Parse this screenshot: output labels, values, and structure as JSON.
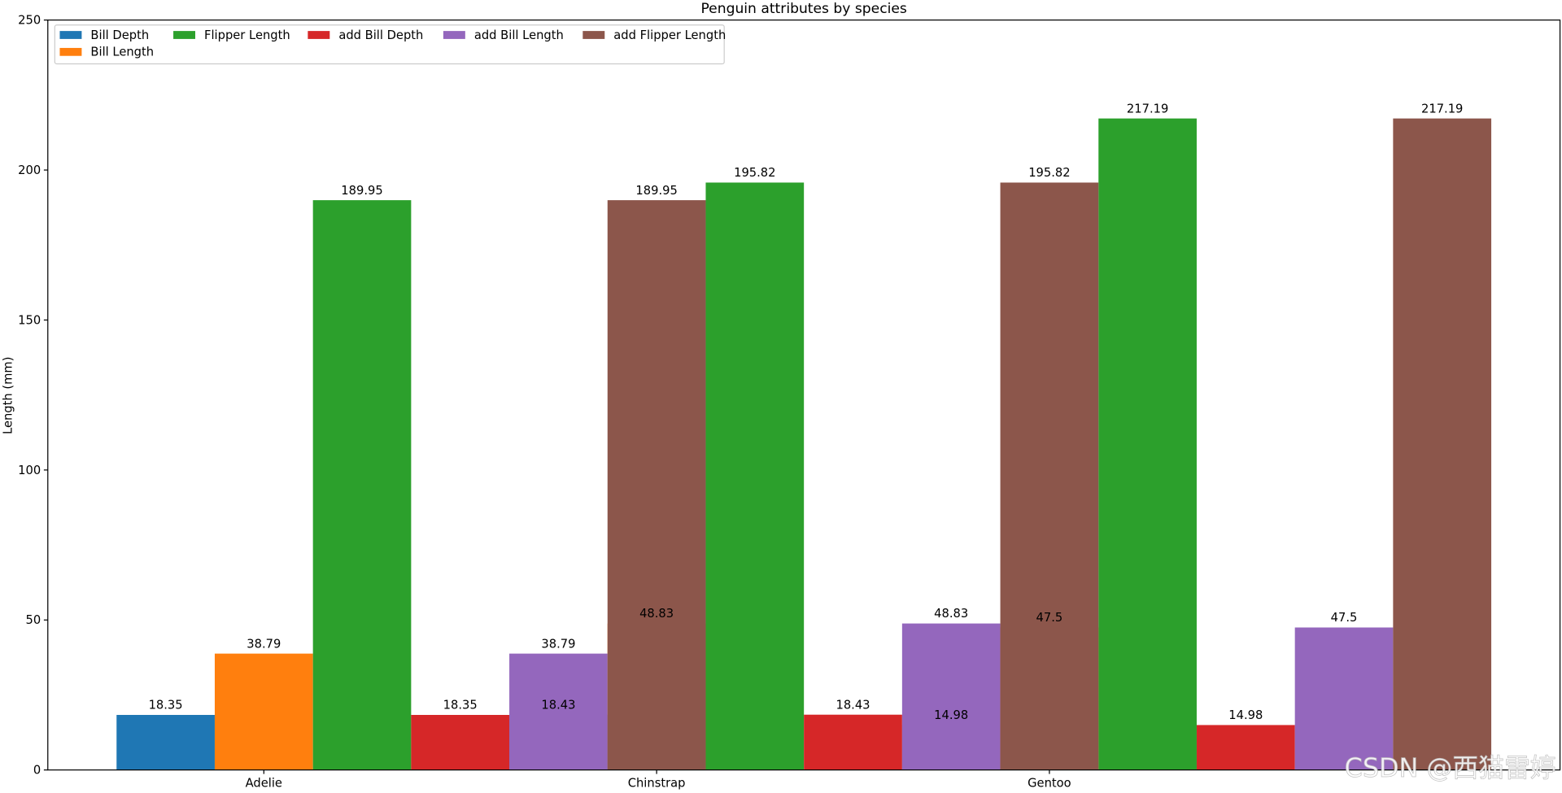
{
  "chart_data": {
    "type": "bar",
    "title": "Penguin attributes by species",
    "ylabel": "Length (mm)",
    "categories": [
      "Adelie",
      "Chinstrap",
      "Gentoo"
    ],
    "series": [
      {
        "name": "Bill Depth",
        "color": "#1f77b4",
        "values": [
          18.35,
          18.43,
          14.98
        ]
      },
      {
        "name": "Bill Length",
        "color": "#ff7f0e",
        "values": [
          38.79,
          48.83,
          47.5
        ]
      },
      {
        "name": "Flipper Length",
        "color": "#2ca02c",
        "values": [
          189.95,
          195.82,
          217.19
        ]
      },
      {
        "name": "add Bill Depth",
        "color": "#d62728",
        "values": [
          18.35,
          18.43,
          14.98
        ]
      },
      {
        "name": "add Bill Length",
        "color": "#9467bd",
        "values": [
          38.79,
          48.83,
          47.5
        ]
      },
      {
        "name": "add Flipper Length",
        "color": "#8c564b",
        "values": [
          189.95,
          195.82,
          217.19
        ]
      }
    ],
    "ylim": [
      0,
      250
    ],
    "yticks": [
      0,
      50,
      100,
      150,
      200,
      250
    ],
    "legend": "upper left",
    "watermark": "CSDN @西猫雷婷"
  }
}
